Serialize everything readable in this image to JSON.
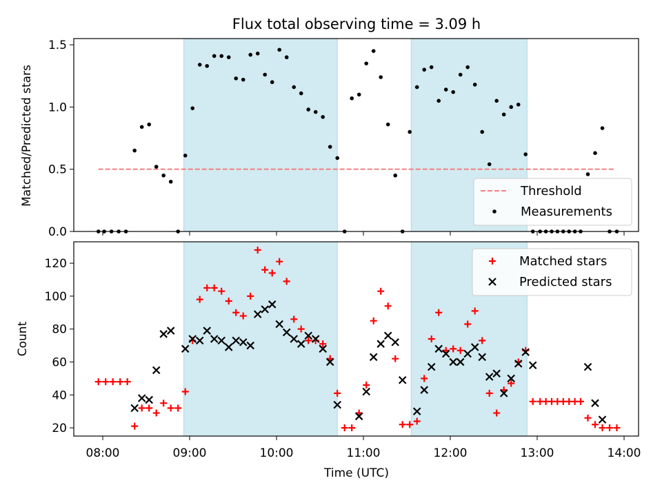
{
  "title": "Flux total observing time = 3.09 h",
  "colors": {
    "band": "#ADD8E6",
    "threshold": "#F08080",
    "measurement": "#000000",
    "matched": "#FF0000",
    "predicted": "#000000"
  },
  "chart_data": [
    {
      "type": "scatter",
      "ylabel": "Matched/Predicted stars",
      "xlim": [
        "07:40",
        "14:10"
      ],
      "ylim": [
        0,
        1.55
      ],
      "yticks": [
        0.0,
        0.5,
        1.0,
        1.5
      ],
      "ytick_labels": [
        "0.0",
        "0.5",
        "1.0",
        "1.5"
      ],
      "xticks": [
        "08:00",
        "09:00",
        "10:00",
        "11:00",
        "12:00",
        "13:00",
        "14:00"
      ],
      "shaded_intervals": [
        [
          "08:56",
          "10:42"
        ],
        [
          "11:33",
          "12:53"
        ]
      ],
      "legend": {
        "position": "lower right",
        "entries": [
          "Threshold",
          "Measurements"
        ]
      },
      "threshold": {
        "name": "Threshold",
        "y": 0.5,
        "x_range": [
          "07:57",
          "13:54"
        ]
      },
      "series": [
        {
          "name": "Measurements",
          "marker": "dot",
          "points": [
            [
              "07:57",
              0.0
            ],
            [
              "08:01",
              0.0
            ],
            [
              "08:06",
              0.0
            ],
            [
              "08:11",
              0.0
            ],
            [
              "08:16",
              0.0
            ],
            [
              "08:22",
              0.65
            ],
            [
              "08:27",
              0.84
            ],
            [
              "08:32",
              0.86
            ],
            [
              "08:37",
              0.52
            ],
            [
              "08:42",
              0.45
            ],
            [
              "08:47",
              0.4
            ],
            [
              "08:52",
              0.0
            ],
            [
              "08:57",
              0.61
            ],
            [
              "09:02",
              0.99
            ],
            [
              "09:07",
              1.34
            ],
            [
              "09:12",
              1.33
            ],
            [
              "09:17",
              1.41
            ],
            [
              "09:22",
              1.41
            ],
            [
              "09:27",
              1.4
            ],
            [
              "09:32",
              1.23
            ],
            [
              "09:37",
              1.22
            ],
            [
              "09:42",
              1.42
            ],
            [
              "09:47",
              1.43
            ],
            [
              "09:52",
              1.26
            ],
            [
              "09:57",
              1.2
            ],
            [
              "10:02",
              1.46
            ],
            [
              "10:07",
              1.4
            ],
            [
              "10:12",
              1.16
            ],
            [
              "10:17",
              1.11
            ],
            [
              "10:22",
              0.98
            ],
            [
              "10:27",
              0.96
            ],
            [
              "10:32",
              0.92
            ],
            [
              "10:37",
              0.68
            ],
            [
              "10:42",
              0.59
            ],
            [
              "10:47",
              0.0
            ],
            [
              "10:52",
              1.07
            ],
            [
              "10:57",
              1.1
            ],
            [
              "11:02",
              1.35
            ],
            [
              "11:07",
              1.45
            ],
            [
              "11:12",
              1.24
            ],
            [
              "11:17",
              0.86
            ],
            [
              "11:22",
              0.45
            ],
            [
              "11:27",
              0.0
            ],
            [
              "11:32",
              0.8
            ],
            [
              "11:37",
              1.16
            ],
            [
              "11:42",
              1.3
            ],
            [
              "11:47",
              1.32
            ],
            [
              "11:52",
              1.05
            ],
            [
              "11:57",
              1.14
            ],
            [
              "12:02",
              1.12
            ],
            [
              "12:07",
              1.26
            ],
            [
              "12:12",
              1.32
            ],
            [
              "12:17",
              1.18
            ],
            [
              "12:22",
              0.8
            ],
            [
              "12:27",
              0.54
            ],
            [
              "12:32",
              1.05
            ],
            [
              "12:37",
              0.94
            ],
            [
              "12:42",
              1.0
            ],
            [
              "12:47",
              1.02
            ],
            [
              "12:52",
              0.62
            ],
            [
              "12:57",
              0.0
            ],
            [
              "13:02",
              0.0
            ],
            [
              "13:06",
              0.0
            ],
            [
              "13:10",
              0.0
            ],
            [
              "13:14",
              0.0
            ],
            [
              "13:18",
              0.0
            ],
            [
              "13:22",
              0.0
            ],
            [
              "13:26",
              0.0
            ],
            [
              "13:30",
              0.0
            ],
            [
              "13:35",
              0.46
            ],
            [
              "13:40",
              0.63
            ],
            [
              "13:45",
              0.83
            ],
            [
              "13:50",
              0.0
            ],
            [
              "13:55",
              0.0
            ]
          ]
        }
      ]
    },
    {
      "type": "scatter",
      "xlabel": "Time (UTC)",
      "ylabel": "Count",
      "xlim": [
        "07:40",
        "14:10"
      ],
      "ylim": [
        15,
        133
      ],
      "yticks": [
        20,
        40,
        60,
        80,
        100,
        120
      ],
      "xticks": [
        "08:00",
        "09:00",
        "10:00",
        "11:00",
        "12:00",
        "13:00",
        "14:00"
      ],
      "xtick_labels": [
        "08:00",
        "09:00",
        "10:00",
        "11:00",
        "12:00",
        "13:00",
        "14:00"
      ],
      "shaded_intervals": [
        [
          "08:56",
          "10:42"
        ],
        [
          "11:33",
          "12:53"
        ]
      ],
      "legend": {
        "position": "upper right",
        "entries": [
          "Matched stars",
          "Predicted stars"
        ]
      },
      "series": [
        {
          "name": "Matched stars",
          "marker": "plus",
          "points": [
            [
              "07:57",
              48
            ],
            [
              "08:02",
              48
            ],
            [
              "08:07",
              48
            ],
            [
              "08:12",
              48
            ],
            [
              "08:17",
              48
            ],
            [
              "08:22",
              21
            ],
            [
              "08:27",
              32
            ],
            [
              "08:32",
              32
            ],
            [
              "08:37",
              29
            ],
            [
              "08:42",
              35
            ],
            [
              "08:47",
              32
            ],
            [
              "08:52",
              32
            ],
            [
              "08:57",
              42
            ],
            [
              "09:02",
              73
            ],
            [
              "09:07",
              98
            ],
            [
              "09:12",
              105
            ],
            [
              "09:17",
              105
            ],
            [
              "09:22",
              103
            ],
            [
              "09:27",
              97
            ],
            [
              "09:32",
              90
            ],
            [
              "09:37",
              88
            ],
            [
              "09:42",
              100
            ],
            [
              "09:47",
              128
            ],
            [
              "09:52",
              116
            ],
            [
              "09:57",
              114
            ],
            [
              "10:02",
              121
            ],
            [
              "10:07",
              109
            ],
            [
              "10:12",
              86
            ],
            [
              "10:17",
              80
            ],
            [
              "10:22",
              73
            ],
            [
              "10:27",
              73
            ],
            [
              "10:32",
              71
            ],
            [
              "10:37",
              62
            ],
            [
              "10:42",
              41
            ],
            [
              "10:47",
              20
            ],
            [
              "10:52",
              20
            ],
            [
              "10:57",
              29
            ],
            [
              "11:02",
              46
            ],
            [
              "11:07",
              85
            ],
            [
              "11:12",
              103
            ],
            [
              "11:17",
              94
            ],
            [
              "11:22",
              62
            ],
            [
              "11:27",
              22
            ],
            [
              "11:32",
              22
            ],
            [
              "11:37",
              24
            ],
            [
              "11:42",
              50
            ],
            [
              "11:47",
              74
            ],
            [
              "11:52",
              90
            ],
            [
              "11:57",
              67
            ],
            [
              "12:02",
              68
            ],
            [
              "12:07",
              67
            ],
            [
              "12:12",
              83
            ],
            [
              "12:17",
              91
            ],
            [
              "12:22",
              73
            ],
            [
              "12:27",
              41
            ],
            [
              "12:32",
              29
            ],
            [
              "12:37",
              43
            ],
            [
              "12:42",
              47
            ],
            [
              "12:47",
              60
            ],
            [
              "12:52",
              67
            ],
            [
              "12:57",
              36
            ],
            [
              "13:02",
              36
            ],
            [
              "13:06",
              36
            ],
            [
              "13:10",
              36
            ],
            [
              "13:14",
              36
            ],
            [
              "13:18",
              36
            ],
            [
              "13:22",
              36
            ],
            [
              "13:26",
              36
            ],
            [
              "13:30",
              36
            ],
            [
              "13:35",
              26
            ],
            [
              "13:40",
              22
            ],
            [
              "13:45",
              20
            ],
            [
              "13:50",
              20
            ],
            [
              "13:55",
              20
            ]
          ]
        },
        {
          "name": "Predicted stars",
          "marker": "x",
          "points": [
            [
              "08:22",
              32
            ],
            [
              "08:27",
              38
            ],
            [
              "08:32",
              37
            ],
            [
              "08:37",
              55
            ],
            [
              "08:42",
              77
            ],
            [
              "08:47",
              79
            ],
            [
              "08:57",
              68
            ],
            [
              "09:02",
              74
            ],
            [
              "09:07",
              73
            ],
            [
              "09:12",
              79
            ],
            [
              "09:17",
              74
            ],
            [
              "09:22",
              73
            ],
            [
              "09:27",
              69
            ],
            [
              "09:32",
              73
            ],
            [
              "09:37",
              72
            ],
            [
              "09:42",
              70
            ],
            [
              "09:47",
              89
            ],
            [
              "09:52",
              92
            ],
            [
              "09:57",
              95
            ],
            [
              "10:02",
              83
            ],
            [
              "10:07",
              78
            ],
            [
              "10:12",
              74
            ],
            [
              "10:17",
              71
            ],
            [
              "10:22",
              76
            ],
            [
              "10:27",
              74
            ],
            [
              "10:32",
              68
            ],
            [
              "10:37",
              60
            ],
            [
              "10:42",
              34
            ],
            [
              "10:57",
              27
            ],
            [
              "11:02",
              42
            ],
            [
              "11:07",
              63
            ],
            [
              "11:12",
              71
            ],
            [
              "11:17",
              76
            ],
            [
              "11:22",
              72
            ],
            [
              "11:27",
              49
            ],
            [
              "11:37",
              30
            ],
            [
              "11:42",
              43
            ],
            [
              "11:47",
              57
            ],
            [
              "11:52",
              68
            ],
            [
              "11:57",
              65
            ],
            [
              "12:02",
              60
            ],
            [
              "12:07",
              60
            ],
            [
              "12:12",
              65
            ],
            [
              "12:17",
              69
            ],
            [
              "12:22",
              63
            ],
            [
              "12:27",
              51
            ],
            [
              "12:32",
              53
            ],
            [
              "12:37",
              41
            ],
            [
              "12:42",
              50
            ],
            [
              "12:47",
              59
            ],
            [
              "12:52",
              66
            ],
            [
              "12:57",
              58
            ],
            [
              "13:35",
              57
            ],
            [
              "13:40",
              35
            ],
            [
              "13:45",
              25
            ]
          ]
        }
      ]
    }
  ]
}
